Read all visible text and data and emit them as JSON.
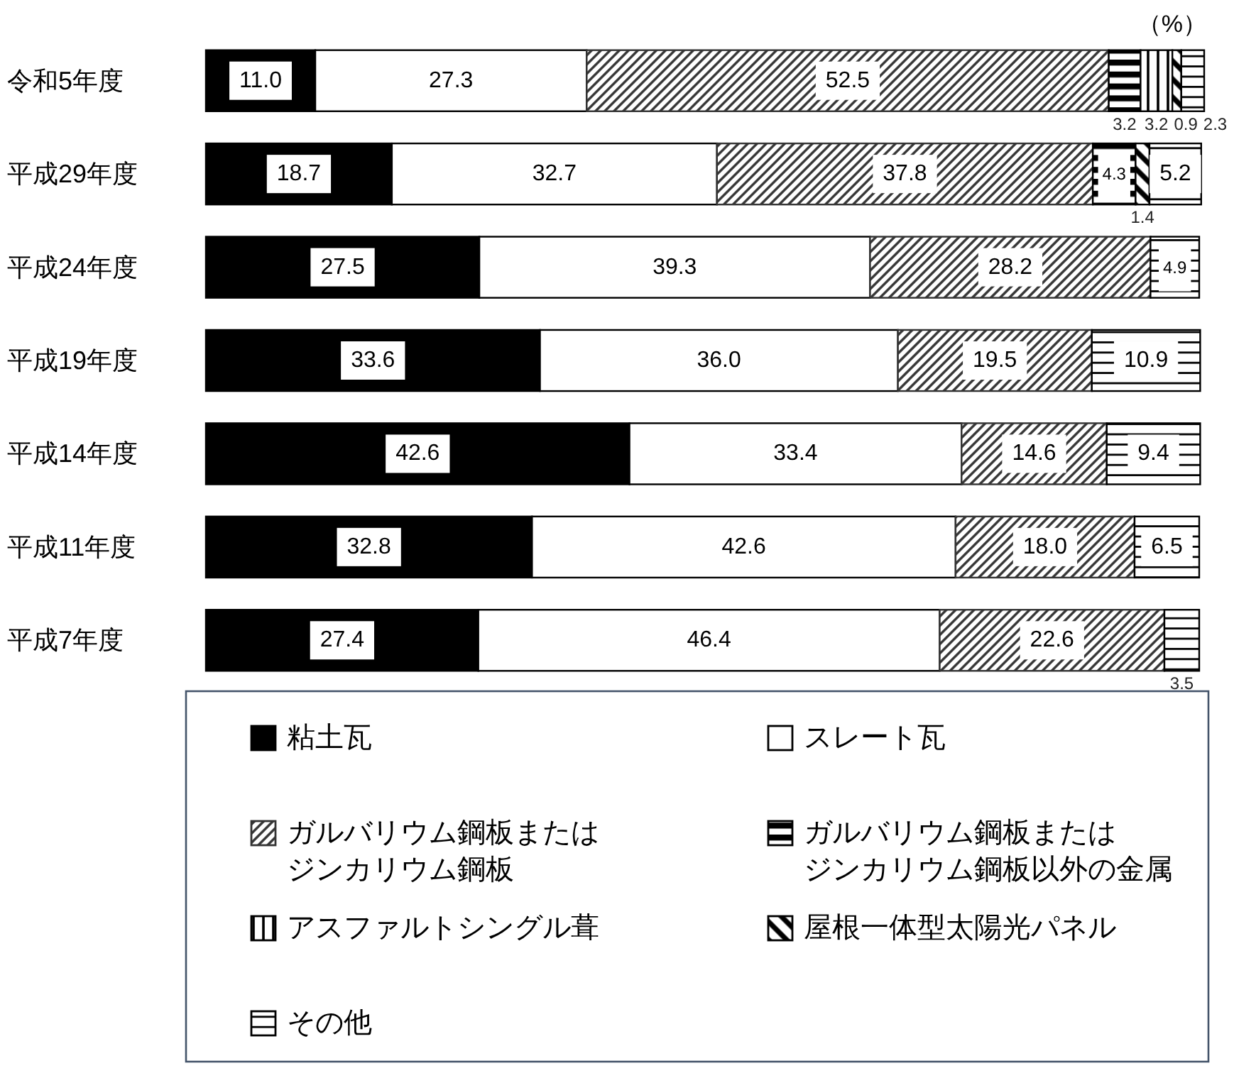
{
  "chart_data": {
    "type": "bar",
    "orientation": "horizontal",
    "stacked": true,
    "legend": "bottom",
    "annotations": [
      "（%）"
    ],
    "categories": [
      "令和5年度",
      "平成29年度",
      "平成24年度",
      "平成19年度",
      "平成14年度",
      "平成11年度",
      "平成7年度"
    ],
    "series": [
      {
        "name": "粘土瓦",
        "color": "#000000",
        "values": [
          11.0,
          18.7,
          27.5,
          33.6,
          42.6,
          32.8,
          27.4
        ],
        "value_labels": [
          "11.0",
          "18.7",
          "27.5",
          "33.6",
          "42.6",
          "32.8",
          "27.4"
        ]
      },
      {
        "name": "スレート瓦",
        "color": "#ffffff",
        "values": [
          27.3,
          32.7,
          39.3,
          36.0,
          33.4,
          42.6,
          46.4
        ],
        "value_labels": [
          "27.3",
          "32.7",
          "39.3",
          "36.0",
          "33.4",
          "42.6",
          "46.4"
        ]
      },
      {
        "name": "ガルバリウム鋼板またはジンカリウム鋼板",
        "color": "#333333",
        "values": [
          52.5,
          37.8,
          28.2,
          19.5,
          14.6,
          18.0,
          22.6
        ],
        "value_labels": [
          "52.5",
          "37.8",
          "28.2",
          "19.5",
          "14.6",
          "18.0",
          "22.6"
        ]
      },
      {
        "name": "ガルバリウム鋼板またはジンカリウム鋼板以外の金属",
        "color": "#000000",
        "values": [
          3.2,
          4.3,
          null,
          null,
          null,
          null,
          null
        ],
        "value_labels": [
          "3.2",
          "4.3",
          null,
          null,
          null,
          null,
          null
        ]
      },
      {
        "name": "アスファルトシングル葺",
        "color": "#000000",
        "values": [
          3.2,
          null,
          null,
          null,
          null,
          null,
          null
        ],
        "value_labels": [
          "3.2",
          null,
          null,
          null,
          null,
          null,
          null
        ]
      },
      {
        "name": "屋根一体型太陽光パネル",
        "color": "#000000",
        "values": [
          0.9,
          1.4,
          null,
          null,
          null,
          null,
          null
        ],
        "value_labels": [
          "0.9",
          "1.4",
          null,
          null,
          null,
          null,
          null
        ]
      },
      {
        "name": "その他",
        "color": "#000000",
        "values": [
          2.3,
          5.2,
          4.9,
          10.9,
          9.4,
          6.5,
          3.5
        ],
        "value_labels": [
          "2.3",
          "5.2",
          "4.9",
          "10.9",
          "9.4",
          "6.5",
          "3.5"
        ]
      }
    ]
  }
}
